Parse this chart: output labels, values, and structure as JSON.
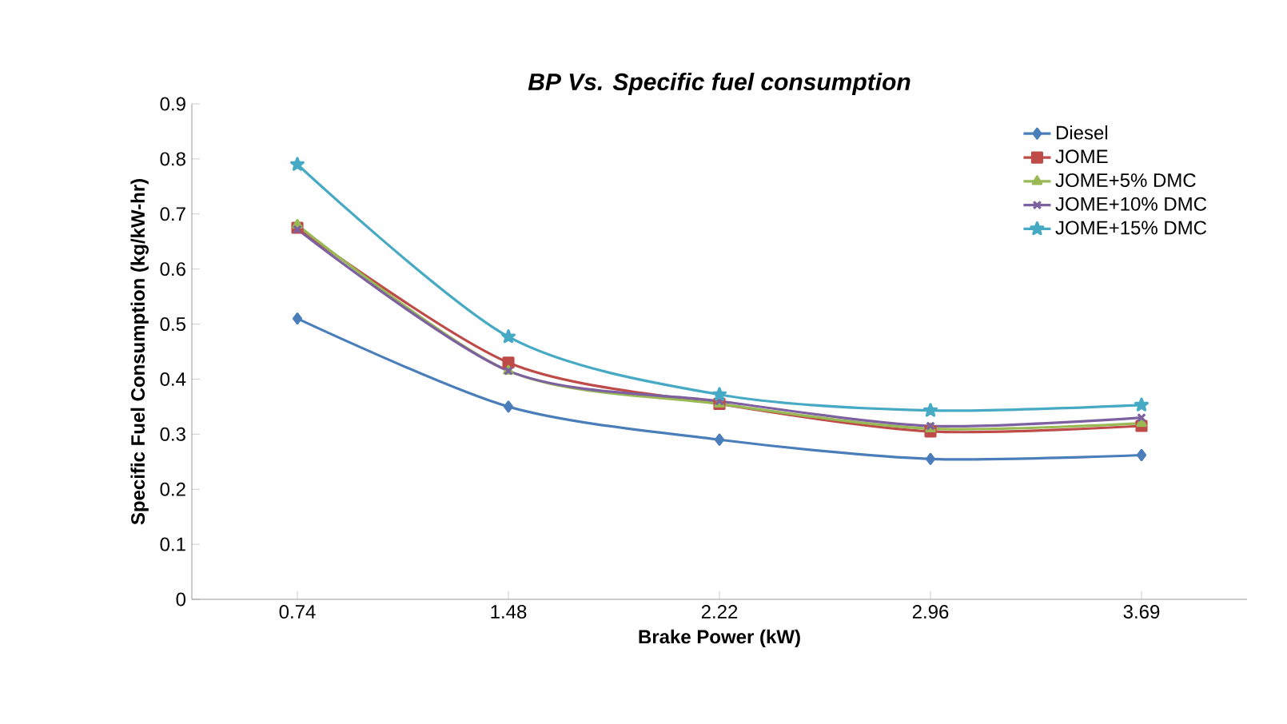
{
  "chart_data": {
    "type": "line",
    "title": "*BP Vs. Specific fuel consumption*",
    "xlabel": "Brake Power (kW)",
    "ylabel": "Specific Fuel Consumption (kg/kW-hr)",
    "categories": [
      "0.74",
      "1.48",
      "2.22",
      "2.96",
      "3.69"
    ],
    "series": [
      {
        "name": "Diesel",
        "color": "#4a7ebb",
        "marker": "diamond",
        "values": [
          0.51,
          0.35,
          0.29,
          0.255,
          0.262
        ]
      },
      {
        "name": "JOME",
        "color": "#be4b48",
        "marker": "square",
        "values": [
          0.675,
          0.43,
          0.355,
          0.305,
          0.315
        ]
      },
      {
        "name": "JOME+5% DMC",
        "color": "#98b954",
        "marker": "triangle",
        "values": [
          0.68,
          0.415,
          0.355,
          0.31,
          0.32
        ]
      },
      {
        "name": "JOME+10% DMC",
        "color": "#7d60a0",
        "marker": "cross",
        "values": [
          0.672,
          0.415,
          0.36,
          0.315,
          0.33
        ]
      },
      {
        "name": "JOME+15% DMC",
        "color": "#46aac5",
        "marker": "star",
        "values": [
          0.79,
          0.477,
          0.372,
          0.343,
          0.353
        ]
      }
    ],
    "ylim": [
      0,
      0.9
    ],
    "yticks": [
      0,
      0.1,
      0.2,
      0.3,
      0.4,
      0.5,
      0.6,
      0.7,
      0.8,
      0.9
    ],
    "grid": false,
    "legend": "top right",
    "line_style": "solid"
  }
}
